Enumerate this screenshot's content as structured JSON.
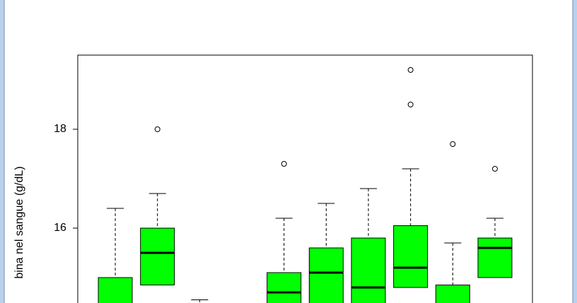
{
  "chart_data": {
    "type": "box",
    "ylabel": "bina nel sangue (g/dL)",
    "categories": [
      null,
      null,
      null,
      null,
      null,
      null,
      null,
      null,
      null,
      null
    ],
    "color": "#00ff00",
    "whisker_high": [
      16.4,
      16.7,
      14.55,
      null,
      16.2,
      16.5,
      16.8,
      17.2,
      15.7,
      16.2
    ],
    "q3": [
      15.0,
      16.0,
      null,
      null,
      15.1,
      15.6,
      15.8,
      16.05,
      14.85,
      15.8
    ],
    "median": [
      null,
      15.5,
      null,
      null,
      14.7,
      15.1,
      14.8,
      15.2,
      null,
      15.6
    ],
    "q1": [
      null,
      14.85,
      null,
      null,
      null,
      null,
      null,
      14.8,
      null,
      15.0
    ],
    "outliers": [
      [],
      [
        18.0
      ],
      [],
      [],
      [
        17.3
      ],
      [],
      [],
      [
        19.2,
        18.5
      ],
      [
        17.7
      ],
      [
        17.2
      ]
    ],
    "ylim": [
      14.5,
      19.5
    ],
    "yticks": [
      16,
      18
    ]
  }
}
